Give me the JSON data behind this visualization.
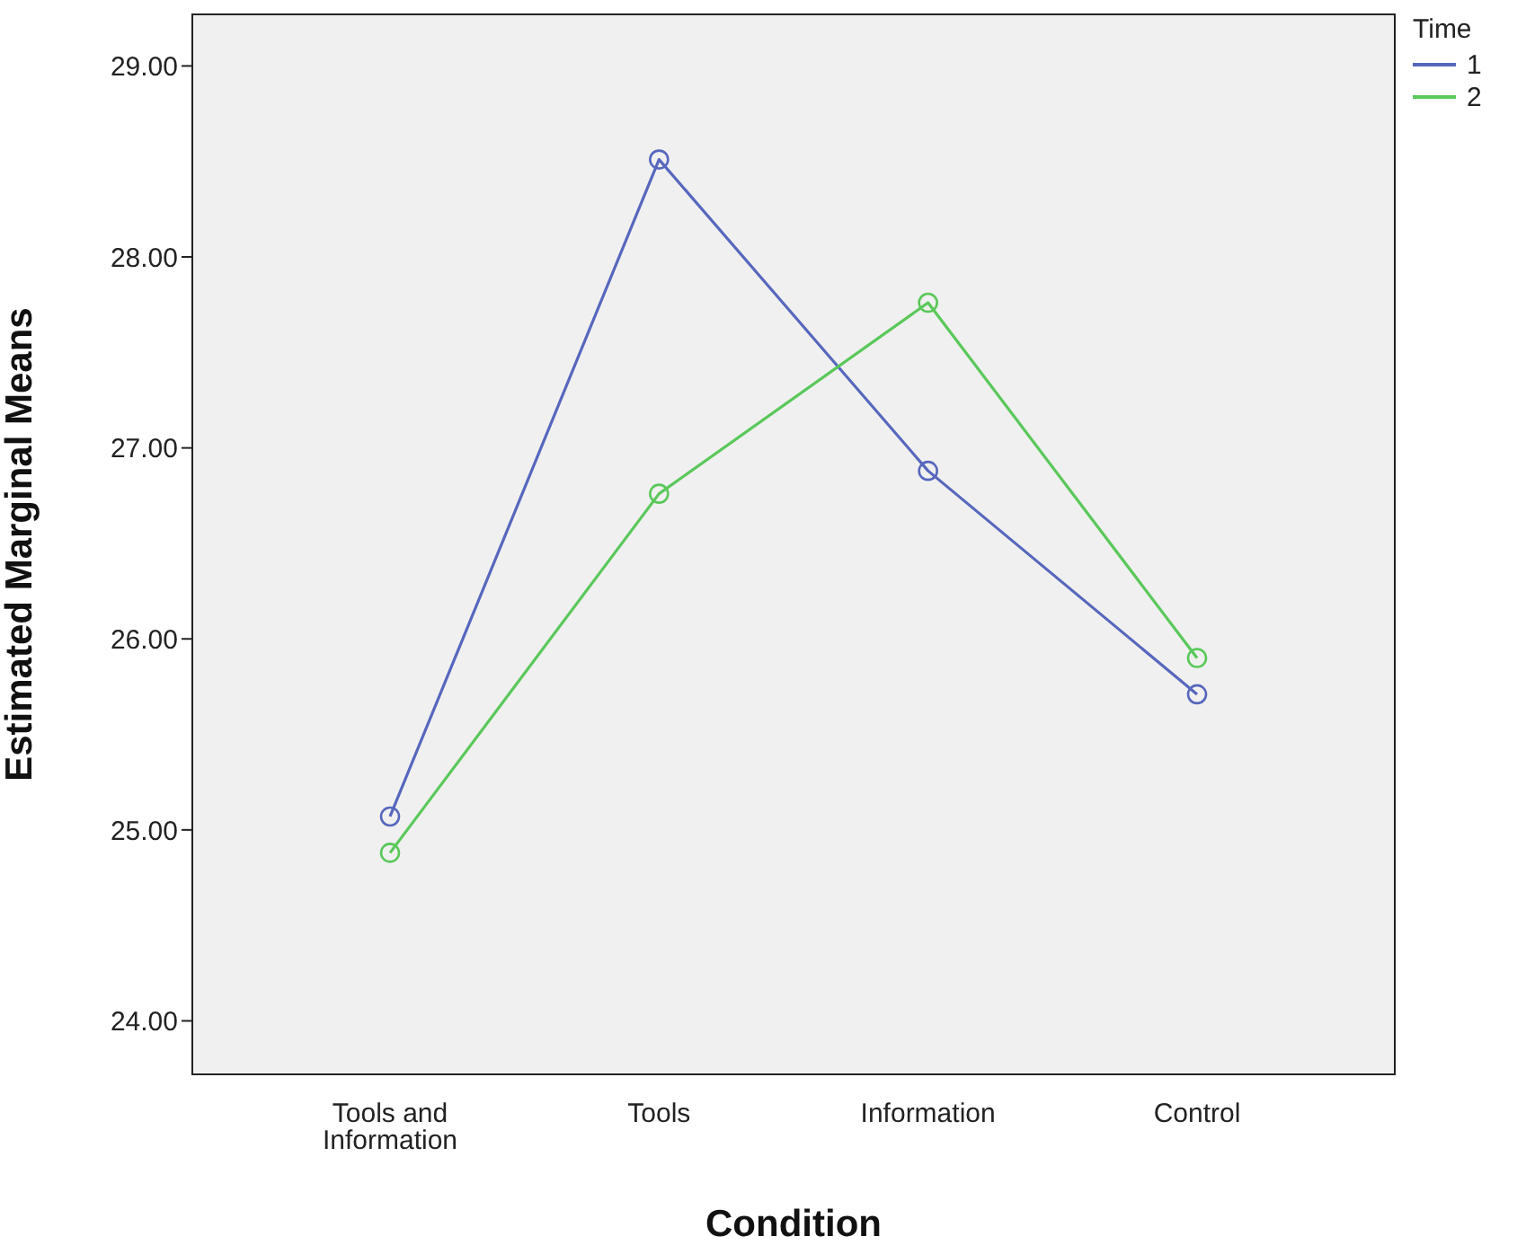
{
  "chart_data": {
    "type": "line",
    "xlabel": "Condition",
    "ylabel": "Estimated Marginal Means",
    "legend_title": "Time",
    "categories": [
      "Tools and Information",
      "Tools",
      "Information",
      "Control"
    ],
    "series": [
      {
        "name": "1",
        "color": "#5767bd",
        "values": [
          25.07,
          28.51,
          26.88,
          25.71
        ]
      },
      {
        "name": "2",
        "color": "#5ac85a",
        "values": [
          24.88,
          26.76,
          27.76,
          25.9
        ]
      }
    ],
    "ylim": [
      23.72,
      29.27
    ],
    "yticks": [
      {
        "value": 24,
        "label": "24.00"
      },
      {
        "value": 25,
        "label": "25.00"
      },
      {
        "value": 26,
        "label": "26.00"
      },
      {
        "value": 27,
        "label": "27.00"
      },
      {
        "value": 28,
        "label": "28.00"
      },
      {
        "value": 29,
        "label": "29.00"
      }
    ],
    "grid": false,
    "legend": "right",
    "marker": "circle",
    "line_style": "solid"
  }
}
